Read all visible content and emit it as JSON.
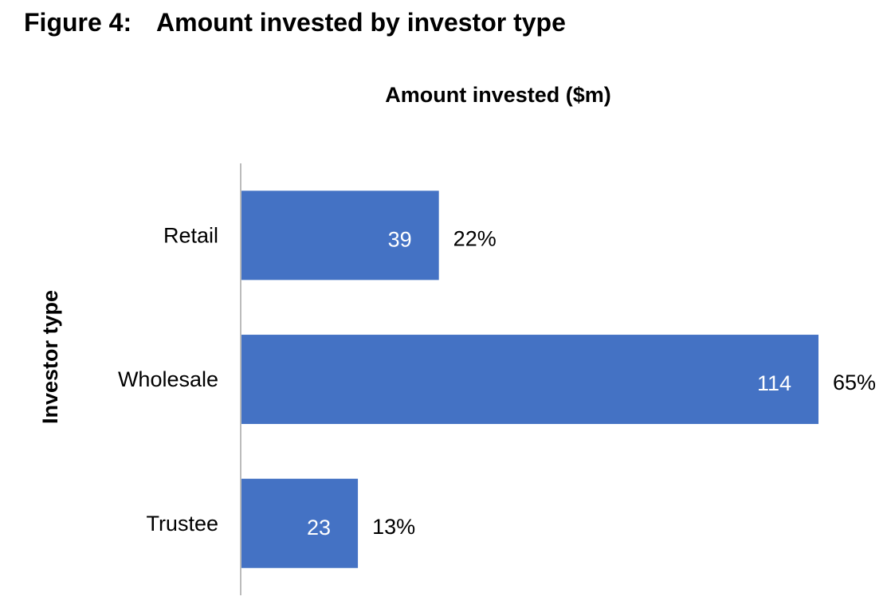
{
  "figure": {
    "label": "Figure 4:",
    "title": "Amount invested by investor type"
  },
  "chart_data": {
    "type": "bar",
    "orientation": "horizontal",
    "title": "Amount invested ($m)",
    "ylabel": "Investor type",
    "xlabel": "",
    "categories": [
      "Retail",
      "Wholesale",
      "Trustee"
    ],
    "values": [
      39,
      114,
      23
    ],
    "percent_labels": [
      "22%",
      "65%",
      "13%"
    ],
    "xlim": [
      0,
      114
    ],
    "grid": false,
    "legend": "none",
    "colors": {
      "bar": "#4472C4",
      "value_label": "#FFFFFF",
      "axis_line": "#A6A6A6",
      "text": "#000000"
    }
  }
}
